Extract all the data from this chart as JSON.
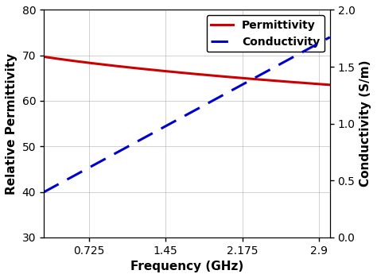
{
  "freq_min": 0.3,
  "freq_max": 3.0,
  "xticks": [
    0.725,
    1.45,
    2.175,
    2.9
  ],
  "xlabel": "Frequency (GHz)",
  "ylabel_left": "Relative Permittivity",
  "ylabel_right": "Conductivity (S/m)",
  "ylim_left": [
    30,
    80
  ],
  "ylim_right": [
    0,
    2
  ],
  "yticks_left": [
    30,
    40,
    50,
    60,
    70,
    80
  ],
  "yticks_right": [
    0,
    0.5,
    1,
    1.5,
    2
  ],
  "permittivity_color": "#cc0000",
  "conductivity_color": "#0000cc",
  "legend_labels": [
    "Permittivity",
    "Conductivity"
  ],
  "perm_eps_inf": 36.0,
  "perm_delta": 35.0,
  "perm_tau": 0.072,
  "perm_alpha": 0.85,
  "cond_a": 0.245,
  "cond_b": 0.505,
  "cond_exp": 1.0,
  "grid": true,
  "background_color": "#ffffff",
  "figwidth": 4.74,
  "figheight": 3.5,
  "dpi": 100
}
